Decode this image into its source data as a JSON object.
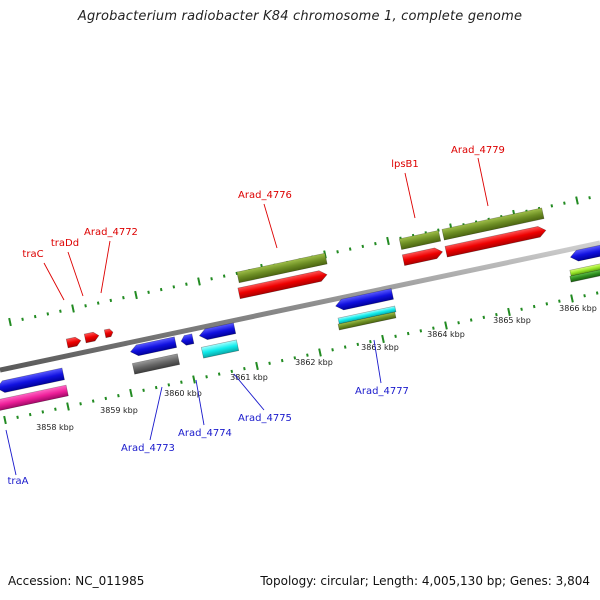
{
  "title": "Agrobacterium radiobacter K84 chromosome 1, complete genome",
  "footer": {
    "accession": "Accession: NC_011985",
    "summary": "Topology: circular; Length: 4,005,130 bp; Genes: 3,804"
  },
  "colors": {
    "forward_label": "#dd0000",
    "reverse_label": "#1a1acc",
    "backbone": "#8c8c8c",
    "tick": "#228b22"
  },
  "ruler": {
    "unit": "kbp",
    "ticks": [
      3858,
      3859,
      3860,
      3861,
      3862,
      3863,
      3864,
      3865,
      3866
    ],
    "tick_labels": [
      "3858 kbp",
      "3859 kbp",
      "3860 kbp",
      "3861 kbp",
      "3862 kbp",
      "3863 kbp",
      "3864 kbp",
      "3865 kbp",
      "3866 kbp"
    ]
  },
  "features": {
    "forward_labels": [
      {
        "name": "traC"
      },
      {
        "name": "traDd"
      },
      {
        "name": "Arad_4772"
      },
      {
        "name": "Arad_4776"
      },
      {
        "name": "lpsB1"
      },
      {
        "name": "Arad_4779"
      }
    ],
    "reverse_labels": [
      {
        "name": "traA"
      },
      {
        "name": "Arad_4773"
      },
      {
        "name": "Arad_4774"
      },
      {
        "name": "Arad_4775"
      },
      {
        "name": "Arad_4777"
      }
    ]
  }
}
